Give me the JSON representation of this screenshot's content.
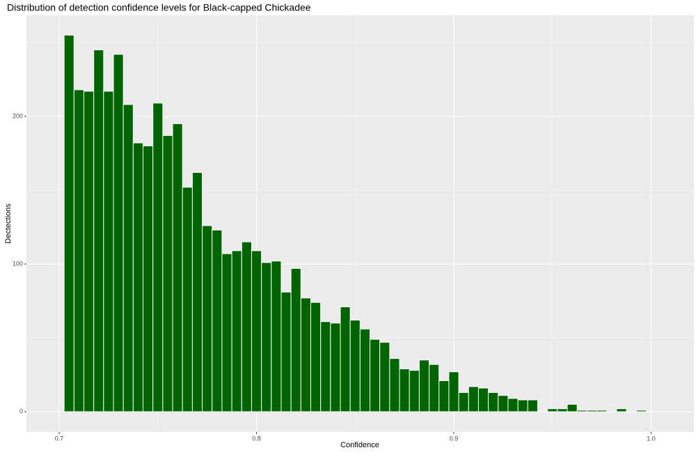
{
  "chart_data": {
    "type": "histogram",
    "title": "Distribution of detection confidence levels for Black-capped Chickadee",
    "x_label": "Confidence",
    "y_label": "Dectections",
    "bins": [
      0.7025,
      0.7075,
      0.7125,
      0.7175,
      0.7225,
      0.7275,
      0.7325,
      0.7375,
      0.7425,
      0.7475,
      0.7525,
      0.7575,
      0.7625,
      0.7675,
      0.7725,
      0.7775,
      0.7825,
      0.7875,
      0.7925,
      0.7975,
      0.8025,
      0.8075,
      0.8125,
      0.8175,
      0.8225,
      0.8275,
      0.8325,
      0.8375,
      0.8425,
      0.8475,
      0.8525,
      0.8575,
      0.8625,
      0.8675,
      0.8725,
      0.8775,
      0.8825,
      0.8875,
      0.8925,
      0.8975,
      0.9025,
      0.9075,
      0.9125,
      0.9175,
      0.9225,
      0.9275,
      0.9325,
      0.9375,
      0.9425,
      0.9475,
      0.9525,
      0.9575,
      0.9625,
      0.9675,
      0.9725,
      0.9775,
      0.9825,
      0.9875,
      0.9925,
      0.9975
    ],
    "values": [
      255,
      218,
      217,
      245,
      217,
      242,
      208,
      182,
      180,
      209,
      187,
      195,
      152,
      162,
      126,
      123,
      107,
      109,
      115,
      109,
      101,
      102,
      81,
      97,
      77,
      74,
      61,
      60,
      71,
      62,
      56,
      49,
      47,
      36,
      29,
      28,
      35,
      32,
      21,
      27,
      13,
      17,
      16,
      13,
      11,
      9,
      8,
      8,
      0,
      2,
      2,
      5,
      1,
      1,
      1,
      0,
      2,
      0,
      1
    ],
    "color": "#006400",
    "xlim": [
      0.6834,
      1.0217
    ],
    "ylim": [
      -13.7,
      268.4
    ],
    "xticks": [
      0.7,
      0.8,
      0.9,
      {
        "value": 1.0,
        "label": "1.0"
      }
    ],
    "yticks": [
      0,
      100,
      200
    ],
    "x_minor_ticks": [
      0.75,
      0.85,
      0.95
    ],
    "y_minor_ticks": [
      50,
      150,
      250
    ],
    "grid": true
  }
}
